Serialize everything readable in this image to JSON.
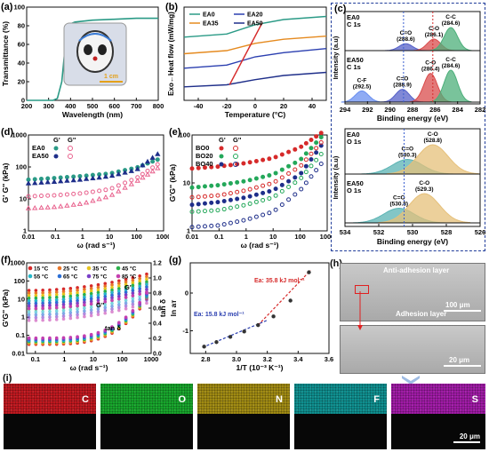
{
  "panel_labels": {
    "a": "(a)",
    "b": "(b)",
    "c": "(c)",
    "d": "(d)",
    "e": "(e)",
    "f": "(f)",
    "g": "(g)",
    "h": "(h)",
    "i": "(i)"
  },
  "colors": {
    "teal": "#2a9a86",
    "blue": "#2b3fb0",
    "orange": "#e58a1f",
    "red": "#d62a2a",
    "pink": "#e8608c",
    "navy": "#1f2f8a",
    "green": "#24a85a",
    "frame": "#1f3c9a"
  },
  "chart_data": [
    {
      "id": "a",
      "type": "line",
      "xlabel": "Wavelength (nm)",
      "ylabel": "Transmittance (%)",
      "xlim": [
        200,
        800
      ],
      "ylim": [
        0,
        100
      ],
      "xticks": [
        200,
        300,
        400,
        500,
        600,
        700,
        800
      ],
      "yticks": [
        0,
        20,
        40,
        60,
        80,
        100
      ],
      "series": [
        {
          "x": [
            200,
            320,
            340,
            360,
            380,
            400,
            420,
            500,
            600,
            700,
            800
          ],
          "y": [
            0,
            0,
            2,
            20,
            68,
            82,
            84,
            86,
            87,
            88,
            88
          ]
        }
      ],
      "inset_scale": "1 cm"
    },
    {
      "id": "b",
      "type": "line",
      "xlabel": "Temperature (°C)",
      "ylabel": "Exo←Heat flow (mW/mg)",
      "xlim": [
        -50,
        50
      ],
      "xticks": [
        -40,
        -20,
        0,
        20,
        40
      ],
      "legend": [
        "EA0",
        "EA20",
        "EA35",
        "EA50"
      ],
      "series": [
        {
          "name": "EA0",
          "x": [
            -50,
            -20,
            0,
            20,
            50
          ],
          "y": [
            7.6,
            7.9,
            8.8,
            9.3,
            9.6
          ]
        },
        {
          "name": "EA20",
          "x": [
            -50,
            -20,
            0,
            20,
            50
          ],
          "y": [
            4.6,
            4.9,
            5.7,
            6.1,
            6.5
          ]
        },
        {
          "name": "EA35",
          "x": [
            -50,
            -20,
            0,
            20,
            50
          ],
          "y": [
            6.0,
            6.3,
            7.0,
            7.4,
            7.7
          ]
        },
        {
          "name": "EA50",
          "x": [
            -50,
            -20,
            0,
            20,
            50
          ],
          "y": [
            2.8,
            3.0,
            3.5,
            3.9,
            4.2
          ]
        }
      ]
    },
    {
      "id": "c1",
      "type": "area",
      "title": "EA0\nC 1s",
      "xlabel": "",
      "ylabel": "Intensity (a.u)",
      "xlim": [
        294,
        282
      ],
      "xticks": [
        294,
        292,
        290,
        288,
        286,
        284,
        282
      ],
      "peaks": [
        {
          "name": "C=O",
          "label": "(288.6)",
          "center": 288.6,
          "height": 0.3
        },
        {
          "name": "C-O",
          "label": "(286.1)",
          "center": 286.1,
          "height": 0.5
        },
        {
          "name": "C-C",
          "label": "(284.6)",
          "center": 284.6,
          "height": 1.0
        }
      ]
    },
    {
      "id": "c2",
      "type": "area",
      "title": "EA50\nC 1s",
      "xlabel": "Binding energy (eV)",
      "ylabel": "Intensity (a.u)",
      "xlim": [
        294,
        282
      ],
      "xticks": [
        294,
        292,
        290,
        288,
        286,
        284,
        282
      ],
      "peaks": [
        {
          "name": "C-F",
          "label": "(292.5)",
          "center": 292.5,
          "height": 0.35
        },
        {
          "name": "C=O",
          "label": "(288.9)",
          "center": 288.9,
          "height": 0.4
        },
        {
          "name": "C-O",
          "label": "(286.4)",
          "center": 286.4,
          "height": 0.9
        },
        {
          "name": "C-C",
          "label": "(284.6)",
          "center": 284.6,
          "height": 1.0
        }
      ]
    },
    {
      "id": "c3",
      "type": "area",
      "title": "EA0\nO 1s",
      "xlabel": "",
      "ylabel": "Intensity (a.u)",
      "xlim": [
        534,
        526
      ],
      "xticks": [
        534,
        532,
        530,
        528,
        526
      ],
      "peaks": [
        {
          "name": "C=O",
          "label": "(530.3)",
          "center": 530.3,
          "height": 0.5
        },
        {
          "name": "C-O",
          "label": "(528.8)",
          "center": 528.8,
          "height": 1.0
        }
      ]
    },
    {
      "id": "c4",
      "type": "area",
      "title": "EA50\nO 1s",
      "xlabel": "Binding energy (eV)",
      "ylabel": "Intensity (a.u)",
      "xlim": [
        534,
        526
      ],
      "xticks": [
        534,
        532,
        530,
        528,
        526
      ],
      "peaks": [
        {
          "name": "C=O",
          "label": "(530.8)",
          "center": 530.8,
          "height": 0.5
        },
        {
          "name": "C-O",
          "label": "(529.3)",
          "center": 529.3,
          "height": 1.0
        }
      ]
    },
    {
      "id": "d",
      "type": "scatter",
      "log": true,
      "xlabel": "ω (rad s⁻¹)",
      "ylabel": "G' G'' (kPa)",
      "xlim": [
        0.01,
        1000
      ],
      "ylim": [
        1,
        1000
      ],
      "xticks": [
        "0.01",
        "0.1",
        "1",
        "10",
        "100",
        "1000"
      ],
      "yticks": [
        "1",
        "10",
        "100",
        "1000"
      ],
      "legend_header": [
        "G'",
        "G''"
      ],
      "series": [
        {
          "name": "EA0 G'",
          "x": [
            0.01,
            0.1,
            1,
            10,
            100,
            600
          ],
          "y": [
            40,
            45,
            52,
            62,
            95,
            170
          ]
        },
        {
          "name": "EA0 G''",
          "x": [
            0.01,
            0.1,
            1,
            10,
            100,
            600
          ],
          "y": [
            12,
            13,
            15,
            20,
            45,
            120
          ]
        },
        {
          "name": "EA50 G'",
          "x": [
            0.01,
            0.1,
            1,
            10,
            100,
            600
          ],
          "y": [
            30,
            34,
            40,
            50,
            80,
            250
          ]
        },
        {
          "name": "EA50 G''",
          "x": [
            0.01,
            0.1,
            1,
            10,
            100,
            600
          ],
          "y": [
            5,
            5.5,
            7,
            12,
            35,
            90
          ]
        }
      ],
      "series_labels": [
        "EA0",
        "EA50"
      ]
    },
    {
      "id": "e",
      "type": "scatter",
      "log": true,
      "xlabel": "ω (rad s⁻¹)",
      "ylabel": "G'G'' (kPa)",
      "xlim": [
        0.01,
        1000
      ],
      "ylim": [
        1,
        100
      ],
      "xticks": [
        "0.01",
        "0.1",
        "1",
        "10",
        "100",
        "1000"
      ],
      "yticks": [
        "1",
        "10",
        "100"
      ],
      "legend_header": [
        "G'",
        "G''"
      ],
      "series_labels": [
        "BO0",
        "BO20",
        "BO40"
      ],
      "series": [
        {
          "name": "BO0 G'",
          "x": [
            0.01,
            0.1,
            1,
            10,
            100,
            600
          ],
          "y": [
            20,
            22,
            26,
            33,
            55,
            110
          ]
        },
        {
          "name": "BO20 G'",
          "x": [
            0.01,
            0.1,
            1,
            10,
            100,
            600
          ],
          "y": [
            8,
            9,
            11,
            15,
            30,
            90
          ]
        },
        {
          "name": "BO40 G'",
          "x": [
            0.01,
            0.1,
            1,
            10,
            100,
            600
          ],
          "y": [
            3.5,
            4,
            5,
            7,
            15,
            60
          ]
        },
        {
          "name": "BO0 G''",
          "x": [
            0.01,
            0.1,
            1,
            10,
            100,
            600
          ],
          "y": [
            5,
            5.5,
            7,
            10,
            22,
            70
          ]
        },
        {
          "name": "BO20 G''",
          "x": [
            0.01,
            0.1,
            1,
            10,
            100,
            600
          ],
          "y": [
            2.5,
            2.7,
            3.5,
            5,
            12,
            40
          ]
        },
        {
          "name": "BO40 G''",
          "x": [
            0.01,
            0.1,
            1,
            10,
            100,
            600
          ],
          "y": [
            1.2,
            1.3,
            1.7,
            2.5,
            7,
            25
          ]
        }
      ]
    },
    {
      "id": "f",
      "type": "scatter",
      "log": true,
      "xlabel": "ω (rad s⁻¹)",
      "ylabel": "G'G'' (kPa)",
      "y2label": "tan δ",
      "xlim": [
        0.05,
        1000
      ],
      "ylim": [
        0.01,
        1000
      ],
      "y2lim": [
        0,
        1.2
      ],
      "xticks": [
        "0.1",
        "1",
        "10",
        "100",
        "1000"
      ],
      "yticks": [
        "0.01",
        "0.1",
        "1",
        "10",
        "100",
        "1000"
      ],
      "y2ticks": [
        "0.0",
        "0.2",
        "0.4",
        "0.6",
        "0.8",
        "1.0",
        "1.2"
      ],
      "legend": [
        "15 °C",
        "25 °C",
        "35 °C",
        "45 °C",
        "55 °C",
        "65 °C",
        "75 °C",
        "85 °C"
      ],
      "annotations": [
        "G'",
        "G''",
        "tan δ"
      ]
    },
    {
      "id": "g",
      "type": "scatter",
      "xlabel": "1/T (10⁻³ K⁻¹)",
      "ylabel": "ln aᴛ",
      "xlim": [
        2.7,
        3.6
      ],
      "ylim": [
        -1.6,
        0.8
      ],
      "xticks": [
        "2.8",
        "3.0",
        "3.2",
        "3.4",
        "3.6"
      ],
      "yticks": [
        "-1",
        "0"
      ],
      "series": [
        {
          "x": [
            2.79,
            2.87,
            2.96,
            3.05,
            3.14,
            3.24,
            3.35,
            3.47
          ],
          "y": [
            -1.42,
            -1.3,
            -1.16,
            -1.02,
            -0.85,
            -0.62,
            -0.2,
            0.55
          ]
        }
      ],
      "annotations": [
        "Ea: 35.8 kJ mol⁻¹",
        "Ea: 15.8 kJ mol⁻¹"
      ]
    }
  ],
  "sem": {
    "top_label": "Anti-adhesion layer",
    "mid_label": "Adhesion layer",
    "scale_top": "100 μm",
    "scale_bot": "20 μm"
  },
  "eds": {
    "elements": [
      "C",
      "O",
      "N",
      "F",
      "S"
    ],
    "colors": [
      "#c0181f",
      "#17a52b",
      "#a08a12",
      "#0e8f8f",
      "#a01aa6"
    ],
    "scale": "20 μm"
  }
}
